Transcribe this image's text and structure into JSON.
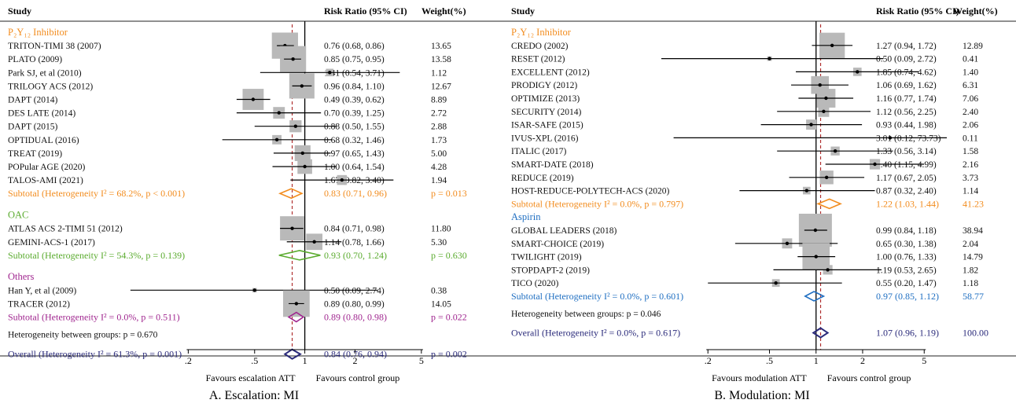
{
  "colors": {
    "p2y12": "#f28c1e",
    "oac": "#5aab2e",
    "others": "#a0268f",
    "aspirin": "#1f6fc2",
    "overall": "#2a2a7a",
    "refline": "#b03030",
    "box": "#b9b9b9"
  },
  "chart_data": [
    {
      "type": "forest",
      "title": "A. Escalation: MI",
      "header": {
        "study": "Study",
        "ci": "Risk Ratio (95% CI)",
        "weight": "Weight(%)"
      },
      "x_scale": "log",
      "xlim": [
        0.08,
        6.5
      ],
      "x_ticks": [
        0.2,
        0.5,
        1,
        2,
        5
      ],
      "x_tick_labels": [
        ".2",
        ".5",
        "1",
        "2",
        "5"
      ],
      "xlabel_left": "Favours escalation ATT",
      "xlabel_right": "Favours control group",
      "ref_dashed": 0.84,
      "rows": [
        {
          "kind": "group",
          "label": "P₂Y₁₂ Inhibitor",
          "color": "p2y12"
        },
        {
          "kind": "study",
          "label": "TRITON-TIMI 38 (2007)",
          "est": 0.76,
          "lo": 0.68,
          "hi": 0.86,
          "ci": "0.76 (0.68, 0.86)",
          "weight": "13.65",
          "w": 13.65
        },
        {
          "kind": "study",
          "label": "PLATO (2009)",
          "est": 0.85,
          "lo": 0.75,
          "hi": 0.95,
          "ci": "0.85 (0.75, 0.95)",
          "weight": "13.58",
          "w": 13.58
        },
        {
          "kind": "study",
          "label": "Park SJ, et al (2010)",
          "est": 1.41,
          "lo": 0.54,
          "hi": 3.71,
          "ci": "1.41 (0.54, 3.71)",
          "weight": "1.12",
          "w": 1.12
        },
        {
          "kind": "study",
          "label": "TRILOGY ACS (2012)",
          "est": 0.96,
          "lo": 0.84,
          "hi": 1.1,
          "ci": "0.96 (0.84, 1.10)",
          "weight": "12.67",
          "w": 12.67
        },
        {
          "kind": "study",
          "label": "DAPT (2014)",
          "est": 0.49,
          "lo": 0.39,
          "hi": 0.62,
          "ci": "0.49 (0.39, 0.62)",
          "weight": "8.89",
          "w": 8.89
        },
        {
          "kind": "study",
          "label": "DES LATE (2014)",
          "est": 0.7,
          "lo": 0.39,
          "hi": 1.25,
          "ci": "0.70 (0.39, 1.25)",
          "weight": "2.72",
          "w": 2.72
        },
        {
          "kind": "study",
          "label": "DAPT (2015)",
          "est": 0.88,
          "lo": 0.5,
          "hi": 1.55,
          "ci": "0.88 (0.50, 1.55)",
          "weight": "2.88",
          "w": 2.88
        },
        {
          "kind": "study",
          "label": "OPTIDUAL (2016)",
          "est": 0.68,
          "lo": 0.32,
          "hi": 1.46,
          "ci": "0.68 (0.32, 1.46)",
          "weight": "1.73",
          "w": 1.73
        },
        {
          "kind": "study",
          "label": "TREAT (2019)",
          "est": 0.97,
          "lo": 0.65,
          "hi": 1.43,
          "ci": "0.97 (0.65, 1.43)",
          "weight": "5.00",
          "w": 5.0
        },
        {
          "kind": "study",
          "label": "POPular AGE (2020)",
          "est": 1.0,
          "lo": 0.64,
          "hi": 1.54,
          "ci": "1.00 (0.64, 1.54)",
          "weight": "4.28",
          "w": 4.28
        },
        {
          "kind": "study",
          "label": "TALOS-AMI (2021)",
          "est": 1.67,
          "lo": 0.82,
          "hi": 3.4,
          "ci": "1.67 (0.82, 3.40)",
          "weight": "1.94",
          "w": 1.94
        },
        {
          "kind": "subtotal",
          "label": "Subtotal (Heterogeneity I² = 68.2%, p < 0.001)",
          "est": 0.83,
          "lo": 0.71,
          "hi": 0.96,
          "ci": "0.83 (0.71, 0.96)",
          "weight": "p = 0.013",
          "color": "p2y12"
        },
        {
          "kind": "gap"
        },
        {
          "kind": "group",
          "label": "OAC",
          "color": "oac"
        },
        {
          "kind": "study",
          "label": "ATLAS ACS 2-TIMI 51 (2012)",
          "est": 0.84,
          "lo": 0.71,
          "hi": 0.98,
          "ci": "0.84 (0.71, 0.98)",
          "weight": "11.80",
          "w": 11.8
        },
        {
          "kind": "study",
          "label": "GEMINI-ACS-1 (2017)",
          "est": 1.14,
          "lo": 0.78,
          "hi": 1.66,
          "ci": "1.14 (0.78, 1.66)",
          "weight": "5.30",
          "w": 5.3
        },
        {
          "kind": "subtotal",
          "label": "Subtotal (Heterogeneity I² = 54.3%, p = 0.139)",
          "est": 0.93,
          "lo": 0.7,
          "hi": 1.24,
          "ci": "0.93 (0.70, 1.24)",
          "weight": "p = 0.630",
          "color": "oac"
        },
        {
          "kind": "gap"
        },
        {
          "kind": "group",
          "label": "Others",
          "color": "others"
        },
        {
          "kind": "study",
          "label": "Han Y, et al (2009)",
          "est": 0.5,
          "lo": 0.09,
          "hi": 2.74,
          "ci": "0.50 (0.09, 2.74)",
          "weight": "0.38",
          "w": 0.38
        },
        {
          "kind": "study",
          "label": "TRACER (2012)",
          "est": 0.89,
          "lo": 0.8,
          "hi": 0.99,
          "ci": "0.89 (0.80, 0.99)",
          "weight": "14.05",
          "w": 14.05
        },
        {
          "kind": "subtotal",
          "label": "Subtotal (Heterogeneity I² = 0.0%, p = 0.511)",
          "est": 0.89,
          "lo": 0.8,
          "hi": 0.98,
          "ci": "0.89 (0.80, 0.98)",
          "weight": "p = 0.022",
          "color": "others"
        },
        {
          "kind": "note",
          "label": "Heterogeneity between groups: p = 0.670"
        },
        {
          "kind": "overall",
          "label": "Overall (Heterogeneity I² = 61.3%, p = 0.001)",
          "est": 0.84,
          "lo": 0.76,
          "hi": 0.94,
          "ci": "0.84 (0.76, 0.94)",
          "weight": "p = 0.002",
          "color": "overall"
        }
      ]
    },
    {
      "type": "forest",
      "title": "B. Modulation: MI",
      "header": {
        "study": "Study",
        "ci": "Risk Ratio (95% CI)",
        "weight": "Weight(%)"
      },
      "x_scale": "log",
      "xlim": [
        0.1,
        7
      ],
      "x_ticks": [
        0.2,
        0.5,
        1,
        2,
        5
      ],
      "x_tick_labels": [
        ".2",
        ".5",
        "1",
        "2",
        "5"
      ],
      "xlabel_left": "Favours modulation ATT",
      "xlabel_right": "Favours control group",
      "ref_dashed": 1.07,
      "rows": [
        {
          "kind": "group",
          "label": "P₂Y₁₂ Inhibitor",
          "color": "p2y12"
        },
        {
          "kind": "study",
          "label": "CREDO (2002)",
          "est": 1.27,
          "lo": 0.94,
          "hi": 1.72,
          "ci": "1.27 (0.94, 1.72)",
          "weight": "12.89",
          "w": 12.89
        },
        {
          "kind": "study",
          "label": "RESET (2012)",
          "est": 0.5,
          "lo": 0.09,
          "hi": 2.72,
          "ci": "0.50 (0.09, 2.72)",
          "weight": "0.41",
          "w": 0.41
        },
        {
          "kind": "study",
          "label": "EXCELLENT (2012)",
          "est": 1.85,
          "lo": 0.74,
          "hi": 4.62,
          "ci": "1.85 (0.74, 4.62)",
          "weight": "1.40",
          "w": 1.4
        },
        {
          "kind": "study",
          "label": "PRODIGY (2012)",
          "est": 1.06,
          "lo": 0.69,
          "hi": 1.62,
          "ci": "1.06 (0.69, 1.62)",
          "weight": "6.31",
          "w": 6.31
        },
        {
          "kind": "study",
          "label": "OPTIMIZE (2013)",
          "est": 1.16,
          "lo": 0.77,
          "hi": 1.74,
          "ci": "1.16 (0.77, 1.74)",
          "weight": "7.06",
          "w": 7.06
        },
        {
          "kind": "study",
          "label": "SECURITY (2014)",
          "est": 1.12,
          "lo": 0.56,
          "hi": 2.25,
          "ci": "1.12 (0.56, 2.25)",
          "weight": "2.40",
          "w": 2.4
        },
        {
          "kind": "study",
          "label": "ISAR-SAFE (2015)",
          "est": 0.93,
          "lo": 0.44,
          "hi": 1.98,
          "ci": "0.93 (0.44, 1.98)",
          "weight": "2.06",
          "w": 2.06
        },
        {
          "kind": "study",
          "label": "IVUS-XPL (2016)",
          "est": 3.01,
          "lo": 0.12,
          "hi": 73.73,
          "ci": "3.01 (0.12, 73.73)",
          "weight": "0.11",
          "w": 0.11
        },
        {
          "kind": "study",
          "label": "ITALIC (2017)",
          "est": 1.33,
          "lo": 0.56,
          "hi": 3.14,
          "ci": "1.33 (0.56, 3.14)",
          "weight": "1.58",
          "w": 1.58
        },
        {
          "kind": "study",
          "label": "SMART-DATE (2018)",
          "est": 2.4,
          "lo": 1.15,
          "hi": 4.99,
          "ci": "2.40 (1.15, 4.99)",
          "weight": "2.16",
          "w": 2.16
        },
        {
          "kind": "study",
          "label": "REDUCE (2019)",
          "est": 1.17,
          "lo": 0.67,
          "hi": 2.05,
          "ci": "1.17 (0.67, 2.05)",
          "weight": "3.73",
          "w": 3.73
        },
        {
          "kind": "study",
          "label": "HOST-REDUCE-POLYTECH-ACS (2020)",
          "est": 0.87,
          "lo": 0.32,
          "hi": 2.4,
          "ci": "0.87 (0.32, 2.40)",
          "weight": "1.14",
          "w": 1.14
        },
        {
          "kind": "subtotal",
          "label": "Subtotal (Heterogeneity I² = 0.0%, p = 0.797)",
          "est": 1.22,
          "lo": 1.03,
          "hi": 1.44,
          "ci": "1.22 (1.03, 1.44)",
          "weight": "41.23",
          "color": "p2y12"
        },
        {
          "kind": "group",
          "label": "Aspirin",
          "color": "aspirin"
        },
        {
          "kind": "study",
          "label": "GLOBAL LEADERS (2018)",
          "est": 0.99,
          "lo": 0.84,
          "hi": 1.18,
          "ci": "0.99 (0.84, 1.18)",
          "weight": "38.94",
          "w": 38.94
        },
        {
          "kind": "study",
          "label": "SMART-CHOICE (2019)",
          "est": 0.65,
          "lo": 0.3,
          "hi": 1.38,
          "ci": "0.65 (0.30, 1.38)",
          "weight": "2.04",
          "w": 2.04
        },
        {
          "kind": "study",
          "label": "TWILIGHT (2019)",
          "est": 1.0,
          "lo": 0.76,
          "hi": 1.33,
          "ci": "1.00 (0.76, 1.33)",
          "weight": "14.79",
          "w": 14.79
        },
        {
          "kind": "study",
          "label": "STOPDAPT-2 (2019)",
          "est": 1.19,
          "lo": 0.53,
          "hi": 2.65,
          "ci": "1.19 (0.53, 2.65)",
          "weight": "1.82",
          "w": 1.82
        },
        {
          "kind": "study",
          "label": "TICO (2020)",
          "est": 0.55,
          "lo": 0.2,
          "hi": 1.47,
          "ci": "0.55 (0.20, 1.47)",
          "weight": "1.18",
          "w": 1.18
        },
        {
          "kind": "subtotal",
          "label": "Subtotal (Heterogeneity I² = 0.0%, p = 0.601)",
          "est": 0.97,
          "lo": 0.85,
          "hi": 1.12,
          "ci": "0.97 (0.85, 1.12)",
          "weight": "58.77",
          "color": "aspirin"
        },
        {
          "kind": "note",
          "label": "Heterogeneity between groups: p = 0.046"
        },
        {
          "kind": "overall",
          "label": "Overall (Heterogeneity I² = 0.0%, p = 0.617)",
          "est": 1.07,
          "lo": 0.96,
          "hi": 1.19,
          "ci": "1.07 (0.96, 1.19)",
          "weight": "100.00",
          "color": "overall"
        }
      ]
    }
  ]
}
